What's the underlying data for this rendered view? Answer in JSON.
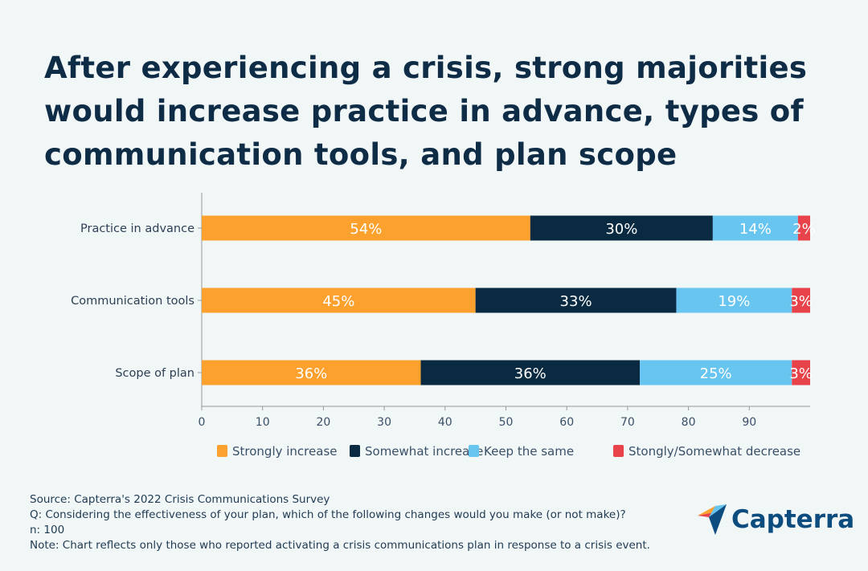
{
  "title": "After experiencing a crisis, strong majorities would increase practice in advance, types of communication tools, and plan scope",
  "chart_data": {
    "type": "bar",
    "orientation": "horizontal",
    "stacked": true,
    "categories": [
      "Practice in advance",
      "Communication tools",
      "Scope of plan"
    ],
    "series": [
      {
        "name": "Strongly increase",
        "color": "#fca12e",
        "values": [
          54,
          45,
          36
        ]
      },
      {
        "name": "Somewhat increase",
        "color": "#0a2a42",
        "values": [
          30,
          33,
          36
        ]
      },
      {
        "name": "Keep the same",
        "color": "#68c5ef",
        "values": [
          14,
          19,
          25
        ]
      },
      {
        "name": "Stongly/Somewhat decrease",
        "color": "#e8434a",
        "values": [
          2,
          3,
          3
        ]
      }
    ],
    "xlim": [
      0,
      100
    ],
    "xticks": [
      "0",
      "10",
      "20",
      "30",
      "40",
      "50",
      "60",
      "70",
      "80",
      "90"
    ],
    "data_label_suffix": "%",
    "grid": false,
    "legend_position": "bottom"
  },
  "notes": [
    "Source: Capterra's 2022 Crisis Communications Survey",
    "Q: Considering the effectiveness of your plan, which of the following changes would you make (or not make)?",
    "n: 100",
    "Note: Chart reflects only those who reported activating a crisis communications plan in response to a crisis event."
  ],
  "logo": {
    "text": "Capterra"
  }
}
